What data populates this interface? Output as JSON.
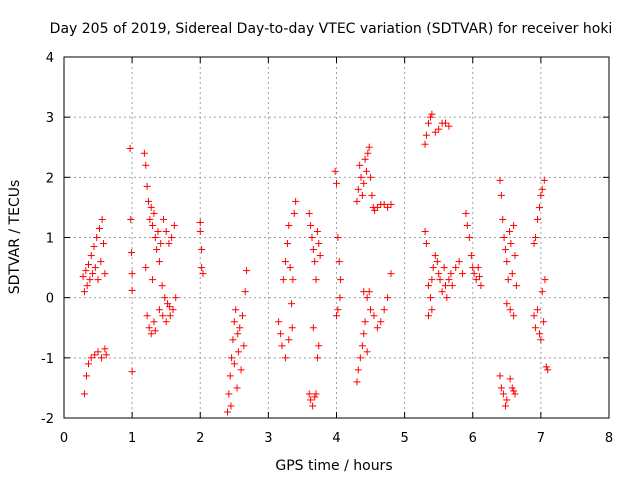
{
  "chart_data": {
    "type": "scatter",
    "title": "Day 205 of 2019, Sidereal Day-to-day VTEC variation (SDTVAR) for receiver hoki",
    "xlabel": "GPS time / hours",
    "ylabel": "SDTVAR / TECUs",
    "xlim": [
      0,
      8
    ],
    "ylim": [
      -2,
      4
    ],
    "xticks": [
      "0",
      "1",
      "2",
      "3",
      "4",
      "5",
      "6",
      "7",
      "8"
    ],
    "yticks": [
      "-2",
      "-1",
      "0",
      "1",
      "2",
      "3",
      "4"
    ],
    "grid": true,
    "marker": "+",
    "color": "#ff0000",
    "series": [
      {
        "name": "SDTVAR",
        "points": [
          [
            0.28,
            0.35
          ],
          [
            0.3,
            0.1
          ],
          [
            0.32,
            0.45
          ],
          [
            0.34,
            0.2
          ],
          [
            0.36,
            0.55
          ],
          [
            0.38,
            0.3
          ],
          [
            0.4,
            0.7
          ],
          [
            0.42,
            0.4
          ],
          [
            0.44,
            0.85
          ],
          [
            0.46,
            0.5
          ],
          [
            0.48,
            1.0
          ],
          [
            0.5,
            0.3
          ],
          [
            0.52,
            1.15
          ],
          [
            0.54,
            0.6
          ],
          [
            0.56,
            1.3
          ],
          [
            0.58,
            0.9
          ],
          [
            0.6,
            0.4
          ],
          [
            0.3,
            -1.6
          ],
          [
            0.33,
            -1.3
          ],
          [
            0.36,
            -1.1
          ],
          [
            0.4,
            -1.0
          ],
          [
            0.45,
            -0.95
          ],
          [
            0.5,
            -0.9
          ],
          [
            0.55,
            -1.0
          ],
          [
            0.6,
            -0.85
          ],
          [
            0.62,
            -0.95
          ],
          [
            0.97,
            2.48
          ],
          [
            0.98,
            1.3
          ],
          [
            0.99,
            0.75
          ],
          [
            1.0,
            0.4
          ],
          [
            1.0,
            0.12
          ],
          [
            1.0,
            -1.23
          ],
          [
            1.18,
            2.4
          ],
          [
            1.2,
            2.2
          ],
          [
            1.22,
            1.85
          ],
          [
            1.24,
            1.6
          ],
          [
            1.26,
            1.3
          ],
          [
            1.28,
            1.5
          ],
          [
            1.3,
            1.2
          ],
          [
            1.32,
            1.4
          ],
          [
            1.34,
            1.0
          ],
          [
            1.36,
            0.8
          ],
          [
            1.38,
            1.1
          ],
          [
            1.4,
            0.6
          ],
          [
            1.42,
            0.9
          ],
          [
            1.44,
            0.2
          ],
          [
            1.46,
            1.3
          ],
          [
            1.48,
            0.0
          ],
          [
            1.5,
            1.1
          ],
          [
            1.52,
            -0.1
          ],
          [
            1.54,
            0.9
          ],
          [
            1.56,
            -0.3
          ],
          [
            1.58,
            1.0
          ],
          [
            1.6,
            -0.2
          ],
          [
            1.62,
            1.2
          ],
          [
            1.64,
            0.0
          ],
          [
            1.2,
            0.5
          ],
          [
            1.22,
            -0.3
          ],
          [
            1.25,
            -0.5
          ],
          [
            1.28,
            -0.6
          ],
          [
            1.3,
            0.3
          ],
          [
            1.32,
            -0.4
          ],
          [
            1.34,
            -0.55
          ],
          [
            1.4,
            -0.2
          ],
          [
            1.45,
            -0.3
          ],
          [
            1.5,
            -0.4
          ],
          [
            1.55,
            -0.15
          ],
          [
            2.0,
            1.25
          ],
          [
            2.0,
            1.1
          ],
          [
            2.02,
            0.8
          ],
          [
            2.02,
            0.5
          ],
          [
            2.04,
            0.4
          ],
          [
            2.4,
            -1.9
          ],
          [
            2.42,
            -1.6
          ],
          [
            2.44,
            -1.3
          ],
          [
            2.46,
            -1.0
          ],
          [
            2.48,
            -0.7
          ],
          [
            2.5,
            -0.4
          ],
          [
            2.52,
            -0.2
          ],
          [
            2.54,
            -1.5
          ],
          [
            2.56,
            -0.9
          ],
          [
            2.58,
            -0.5
          ],
          [
            2.6,
            -1.2
          ],
          [
            2.62,
            -0.3
          ],
          [
            2.64,
            -0.8
          ],
          [
            2.66,
            0.1
          ],
          [
            2.68,
            0.45
          ],
          [
            2.45,
            -1.8
          ],
          [
            2.5,
            -1.1
          ],
          [
            2.55,
            -0.6
          ],
          [
            3.15,
            -0.4
          ],
          [
            3.18,
            -0.6
          ],
          [
            3.2,
            -0.8
          ],
          [
            3.22,
            0.3
          ],
          [
            3.25,
            0.6
          ],
          [
            3.28,
            0.9
          ],
          [
            3.3,
            1.2
          ],
          [
            3.32,
            0.5
          ],
          [
            3.34,
            -0.1
          ],
          [
            3.36,
            0.3
          ],
          [
            3.38,
            1.4
          ],
          [
            3.4,
            1.6
          ],
          [
            3.35,
            -0.5
          ],
          [
            3.3,
            -0.7
          ],
          [
            3.25,
            -1.0
          ],
          [
            3.6,
            1.4
          ],
          [
            3.62,
            1.2
          ],
          [
            3.64,
            1.0
          ],
          [
            3.66,
            0.8
          ],
          [
            3.68,
            0.6
          ],
          [
            3.7,
            0.3
          ],
          [
            3.72,
            1.1
          ],
          [
            3.74,
            0.9
          ],
          [
            3.76,
            0.7
          ],
          [
            3.6,
            -1.6
          ],
          [
            3.62,
            -1.7
          ],
          [
            3.65,
            -1.8
          ],
          [
            3.68,
            -1.65
          ],
          [
            3.7,
            -1.6
          ],
          [
            3.72,
            -1.0
          ],
          [
            3.74,
            -0.8
          ],
          [
            3.66,
            -0.5
          ],
          [
            3.98,
            2.1
          ],
          [
            4.0,
            1.9
          ],
          [
            4.02,
            1.0
          ],
          [
            4.04,
            0.6
          ],
          [
            4.06,
            0.3
          ],
          [
            4.0,
            -0.3
          ],
          [
            4.02,
            -0.2
          ],
          [
            4.05,
            0.0
          ],
          [
            4.3,
            1.6
          ],
          [
            4.32,
            1.8
          ],
          [
            4.34,
            2.2
          ],
          [
            4.36,
            2.0
          ],
          [
            4.38,
            1.7
          ],
          [
            4.4,
            1.9
          ],
          [
            4.42,
            2.3
          ],
          [
            4.44,
            2.1
          ],
          [
            4.46,
            2.4
          ],
          [
            4.48,
            2.5
          ],
          [
            4.5,
            2.0
          ],
          [
            4.52,
            1.7
          ],
          [
            4.54,
            1.5
          ],
          [
            4.56,
            1.45
          ],
          [
            4.6,
            1.5
          ],
          [
            4.65,
            1.55
          ],
          [
            4.7,
            1.55
          ],
          [
            4.75,
            1.5
          ],
          [
            4.8,
            1.55
          ],
          [
            4.3,
            -1.4
          ],
          [
            4.32,
            -1.2
          ],
          [
            4.35,
            -1.0
          ],
          [
            4.38,
            -0.8
          ],
          [
            4.4,
            -0.6
          ],
          [
            4.42,
            -0.4
          ],
          [
            4.45,
            0.0
          ],
          [
            4.48,
            0.1
          ],
          [
            4.5,
            -0.2
          ],
          [
            4.55,
            -0.3
          ],
          [
            4.6,
            -0.5
          ],
          [
            4.65,
            -0.4
          ],
          [
            4.7,
            -0.2
          ],
          [
            4.75,
            0.0
          ],
          [
            4.8,
            0.4
          ],
          [
            4.4,
            0.1
          ],
          [
            4.45,
            -0.9
          ],
          [
            5.3,
            2.55
          ],
          [
            5.32,
            2.7
          ],
          [
            5.35,
            2.9
          ],
          [
            5.38,
            3.0
          ],
          [
            5.4,
            3.05
          ],
          [
            5.45,
            2.75
          ],
          [
            5.5,
            2.8
          ],
          [
            5.55,
            2.9
          ],
          [
            5.6,
            2.9
          ],
          [
            5.65,
            2.85
          ],
          [
            5.3,
            1.1
          ],
          [
            5.32,
            0.9
          ],
          [
            5.35,
            0.2
          ],
          [
            5.38,
            0.0
          ],
          [
            5.4,
            -0.2
          ],
          [
            5.42,
            0.5
          ],
          [
            5.45,
            0.7
          ],
          [
            5.48,
            0.6
          ],
          [
            5.5,
            0.4
          ],
          [
            5.52,
            0.3
          ],
          [
            5.55,
            0.1
          ],
          [
            5.58,
            0.5
          ],
          [
            5.6,
            0.2
          ],
          [
            5.62,
            0.0
          ],
          [
            5.65,
            0.3
          ],
          [
            5.68,
            0.4
          ],
          [
            5.7,
            0.2
          ],
          [
            5.75,
            0.5
          ],
          [
            5.8,
            0.6
          ],
          [
            5.85,
            0.4
          ],
          [
            5.9,
            1.4
          ],
          [
            5.92,
            1.2
          ],
          [
            5.95,
            1.0
          ],
          [
            5.98,
            0.7
          ],
          [
            6.0,
            0.5
          ],
          [
            6.02,
            0.4
          ],
          [
            6.05,
            0.3
          ],
          [
            6.08,
            0.5
          ],
          [
            6.1,
            0.35
          ],
          [
            6.12,
            0.2
          ],
          [
            5.35,
            -0.3
          ],
          [
            5.4,
            0.3
          ],
          [
            6.4,
            1.95
          ],
          [
            6.42,
            1.7
          ],
          [
            6.44,
            1.3
          ],
          [
            6.46,
            1.0
          ],
          [
            6.48,
            0.8
          ],
          [
            6.5,
            0.6
          ],
          [
            6.52,
            0.3
          ],
          [
            6.54,
            1.1
          ],
          [
            6.56,
            0.9
          ],
          [
            6.58,
            0.4
          ],
          [
            6.6,
            1.2
          ],
          [
            6.62,
            0.7
          ],
          [
            6.64,
            0.2
          ],
          [
            6.5,
            -0.1
          ],
          [
            6.55,
            -0.2
          ],
          [
            6.6,
            -0.3
          ],
          [
            6.4,
            -1.3
          ],
          [
            6.42,
            -1.5
          ],
          [
            6.45,
            -1.6
          ],
          [
            6.48,
            -1.8
          ],
          [
            6.5,
            -1.7
          ],
          [
            6.55,
            -1.35
          ],
          [
            6.58,
            -1.5
          ],
          [
            6.6,
            -1.55
          ],
          [
            6.62,
            -1.6
          ],
          [
            6.9,
            0.9
          ],
          [
            6.92,
            1.0
          ],
          [
            6.95,
            1.3
          ],
          [
            6.98,
            1.5
          ],
          [
            7.0,
            1.7
          ],
          [
            7.02,
            1.8
          ],
          [
            7.05,
            1.95
          ],
          [
            6.9,
            -0.3
          ],
          [
            6.92,
            -0.5
          ],
          [
            6.95,
            -0.2
          ],
          [
            6.98,
            -0.6
          ],
          [
            7.0,
            -0.7
          ],
          [
            7.02,
            0.1
          ],
          [
            7.04,
            -0.4
          ],
          [
            7.06,
            0.3
          ],
          [
            7.08,
            -1.15
          ],
          [
            7.1,
            -1.2
          ]
        ]
      }
    ]
  }
}
